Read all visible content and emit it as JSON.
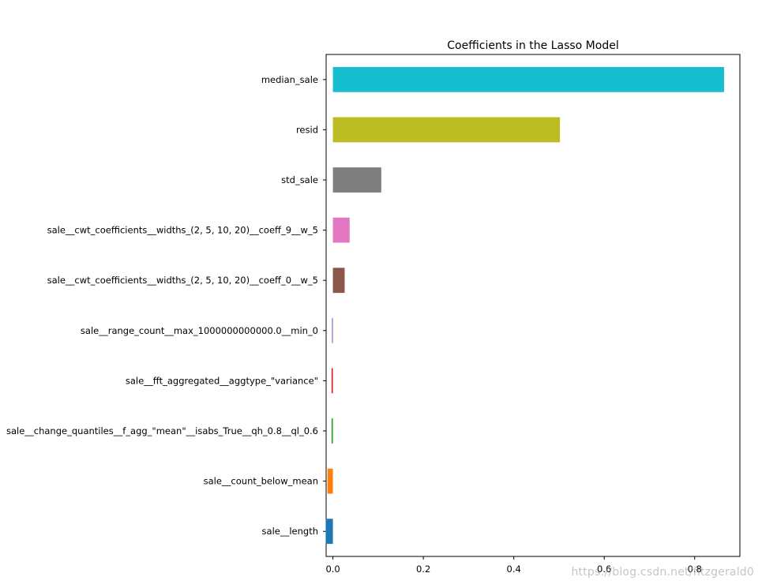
{
  "chart_data": {
    "type": "bar",
    "orientation": "horizontal",
    "title": "Coefficients in the Lasso Model",
    "xlabel": "",
    "ylabel": "",
    "xlim": [
      -0.015,
      0.9
    ],
    "xticks": [
      0.0,
      0.2,
      0.4,
      0.6,
      0.8
    ],
    "xtick_labels": [
      "0.0",
      "0.2",
      "0.4",
      "0.6",
      "0.8"
    ],
    "grid": false,
    "categories": [
      "median_sale",
      "resid",
      "std_sale",
      "sale__cwt_coefficients__widths_(2, 5, 10, 20)__coeff_9__w_5",
      "sale__cwt_coefficients__widths_(2, 5, 10, 20)__coeff_0__w_5",
      "sale__range_count__max_1000000000000.0__min_0",
      "sale__fft_aggregated__aggtype_\"variance\"",
      "sale__change_quantiles__f_agg_\"mean\"__isabs_True__qh_0.8__ql_0.6",
      "sale__count_below_mean",
      "sale__length"
    ],
    "values": [
      0.865,
      0.502,
      0.107,
      0.037,
      0.026,
      -0.001,
      -0.003,
      -0.003,
      -0.012,
      -0.016
    ],
    "colors": [
      "#17becf",
      "#bcbd22",
      "#7f7f7f",
      "#e377c2",
      "#8c564b",
      "#9467bd",
      "#d62728",
      "#2ca02c",
      "#ff7f0e",
      "#1f77b4"
    ]
  },
  "watermark": "https://blog.csdn.net/fitzgerald0"
}
